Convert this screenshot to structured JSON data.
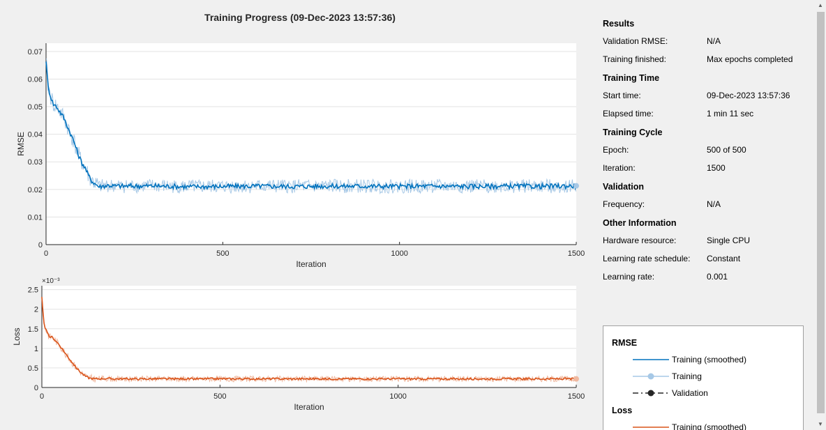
{
  "title": "Training Progress (09-Dec-2023 13:57:36)",
  "info": {
    "sections": [
      {
        "heading": "Results",
        "rows": [
          {
            "label": "Validation RMSE:",
            "value": "N/A"
          },
          {
            "label": "Training finished:",
            "value": "Max epochs completed"
          }
        ]
      },
      {
        "heading": "Training Time",
        "rows": [
          {
            "label": "Start time:",
            "value": "09-Dec-2023 13:57:36"
          },
          {
            "label": "Elapsed time:",
            "value": "1 min 11 sec"
          }
        ]
      },
      {
        "heading": "Training Cycle",
        "rows": [
          {
            "label": "Epoch:",
            "value": "500 of 500"
          },
          {
            "label": "Iteration:",
            "value": "1500"
          }
        ]
      },
      {
        "heading": "Validation",
        "rows": [
          {
            "label": "Frequency:",
            "value": "N/A"
          }
        ]
      },
      {
        "heading": "Other Information",
        "rows": [
          {
            "label": "Hardware resource:",
            "value": "Single CPU"
          },
          {
            "label": "Learning rate schedule:",
            "value": "Constant"
          },
          {
            "label": "Learning rate:",
            "value": "0.001"
          }
        ]
      }
    ]
  },
  "legend": {
    "rmse_heading": "RMSE",
    "rmse_items": [
      "Training (smoothed)",
      "Training",
      "Validation"
    ],
    "loss_heading": "Loss",
    "loss_items": [
      "Training (smoothed)"
    ]
  },
  "colors": {
    "rmse_smoothed": "#0072bd",
    "rmse_raw": "#a6c8e6",
    "loss_smoothed": "#d95319",
    "loss_raw": "#f0b9a0",
    "grid": "#e3e3e3"
  },
  "chart_data": [
    {
      "type": "line",
      "xlabel": "Iteration",
      "ylabel": "RMSE",
      "xlim": [
        0,
        1500
      ],
      "ylim": [
        0,
        0.073
      ],
      "xticks": [
        0,
        500,
        1000,
        1500
      ],
      "yticks": [
        0,
        0.01,
        0.02,
        0.03,
        0.04,
        0.05,
        0.06,
        0.07
      ],
      "ytick_labels": [
        "0",
        "0.01",
        "0.02",
        "0.03",
        "0.04",
        "0.05",
        "0.06",
        "0.07"
      ],
      "series": [
        {
          "name": "Training (smoothed)",
          "x": [
            0,
            5,
            10,
            20,
            30,
            40,
            50,
            60,
            70,
            80,
            90,
            100,
            110,
            120,
            130,
            140,
            150,
            175,
            200,
            300,
            400,
            500,
            600,
            700,
            800,
            900,
            1000,
            1100,
            1200,
            1300,
            1400,
            1500
          ],
          "y": [
            0.067,
            0.058,
            0.055,
            0.051,
            0.05,
            0.048,
            0.046,
            0.043,
            0.04,
            0.037,
            0.033,
            0.03,
            0.028,
            0.025,
            0.023,
            0.022,
            0.021,
            0.0215,
            0.0212,
            0.0213,
            0.021,
            0.0211,
            0.0212,
            0.0211,
            0.0212,
            0.0212,
            0.0211,
            0.0212,
            0.0211,
            0.0212,
            0.0211,
            0.0213
          ]
        }
      ]
    },
    {
      "type": "line",
      "xlabel": "Iteration",
      "ylabel": "Loss",
      "y_exponent": "×10⁻³",
      "xlim": [
        0,
        1500
      ],
      "ylim": [
        0,
        0.0026
      ],
      "xticks": [
        0,
        500,
        1000,
        1500
      ],
      "yticks": [
        0,
        0.0005,
        0.001,
        0.0015,
        0.002,
        0.0025
      ],
      "ytick_labels": [
        "0",
        "0.5",
        "1",
        "1.5",
        "2",
        "2.5"
      ],
      "series": [
        {
          "name": "Training (smoothed)",
          "x": [
            0,
            5,
            10,
            20,
            30,
            40,
            50,
            60,
            70,
            80,
            90,
            100,
            110,
            120,
            130,
            140,
            150,
            175,
            200,
            300,
            400,
            500,
            600,
            700,
            800,
            900,
            1000,
            1100,
            1200,
            1300,
            1400,
            1500
          ],
          "y": [
            0.0023,
            0.0017,
            0.0015,
            0.0013,
            0.00128,
            0.00118,
            0.00108,
            0.00095,
            0.00082,
            0.0007,
            0.00058,
            0.00047,
            0.00038,
            0.0003,
            0.00025,
            0.00023,
            0.00022,
            0.00023,
            0.00022,
            0.00022,
            0.00022,
            0.00022,
            0.00022,
            0.00022,
            0.00022,
            0.00022,
            0.00022,
            0.00022,
            0.00022,
            0.00022,
            0.00022,
            0.00022
          ]
        }
      ]
    }
  ]
}
